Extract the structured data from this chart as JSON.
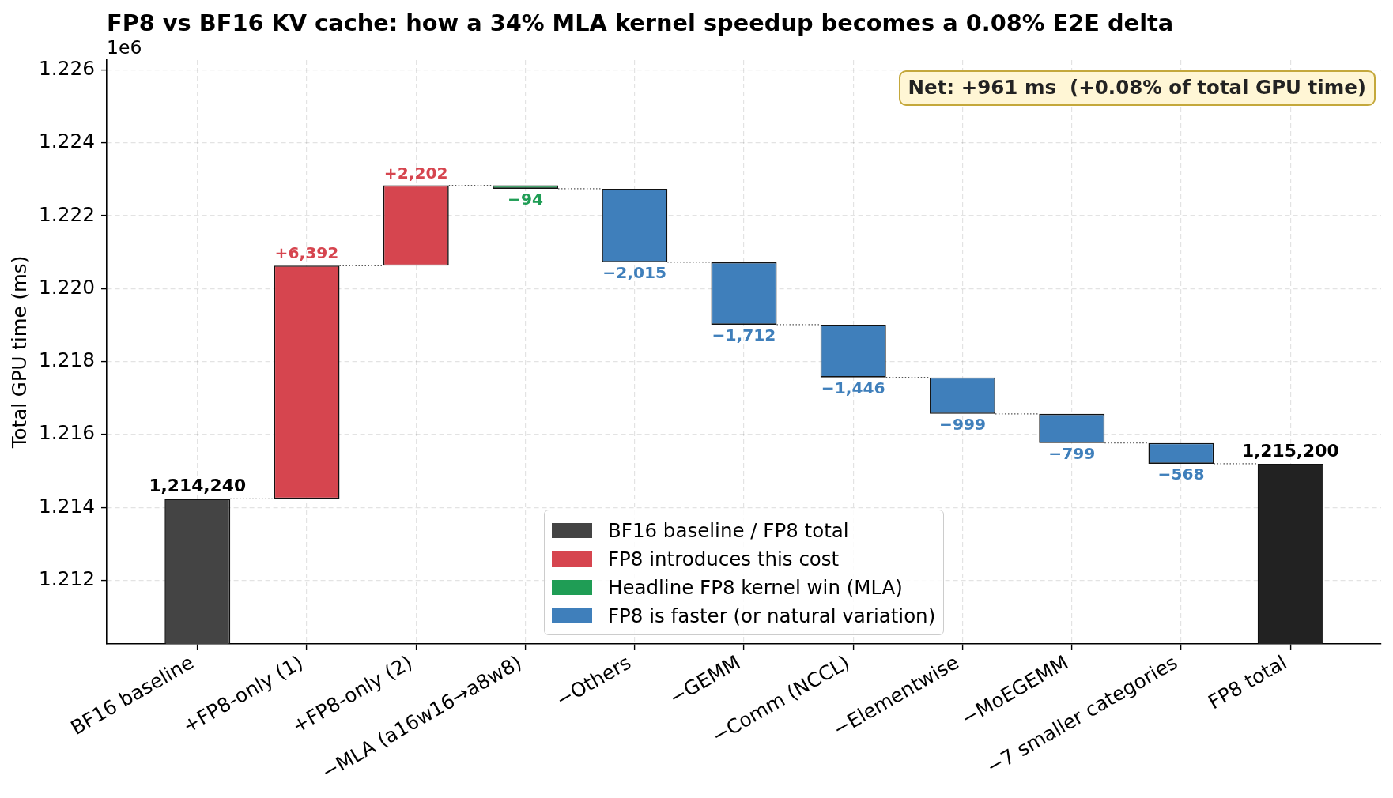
{
  "chart_data": {
    "type": "bar",
    "title": "FP8 vs BF16 KV cache: how a 34% MLA kernel speedup becomes a 0.08% E2E delta",
    "ylabel": "Total GPU time (ms)",
    "annotations": [
      "1e6",
      "Net: +961 ms  (+0.08% of total GPU time)",
      {
        "text": "1,214,240",
        "x": "BF16 baseline",
        "y": 1.21424
      },
      {
        "text": "+6,392",
        "x": "+FP8-only (1)",
        "y": 1.220632
      },
      {
        "text": "+2,202",
        "x": "+FP8-only (2)",
        "y": 1.222834
      },
      {
        "text": "−94",
        "x": "−MLA (a16w16→a8w8)",
        "y": 1.22274
      },
      {
        "text": "−2,015",
        "x": "−Others",
        "y": 1.220725
      },
      {
        "text": "−1,712",
        "x": "−GEMM",
        "y": 1.219013
      },
      {
        "text": "−1,446",
        "x": "−Comm (NCCL)",
        "y": 1.217567
      },
      {
        "text": "−999",
        "x": "−Elementwise",
        "y": 1.216568
      },
      {
        "text": "−799",
        "x": "−MoEGEMM",
        "y": 1.215769
      },
      {
        "text": "−568",
        "x": "−7 smaller categories",
        "y": 1.215201
      },
      {
        "text": "1,215,200",
        "x": "FP8 total",
        "y": 1.2152
      }
    ],
    "categories": [
      "BF16 baseline",
      "+FP8-only (1)",
      "+FP8-only (2)",
      "−MLA (a16w16→a8w8)",
      "−Others",
      "−GEMM",
      "−Comm (NCCL)",
      "−Elementwise",
      "−MoEGEMM",
      "−7 smaller categories",
      "FP8 total"
    ],
    "series": [
      {
        "name": "BF16 baseline / FP8 total",
        "color": "#444444",
        "colors": [
          "#444444",
          null,
          null,
          null,
          null,
          null,
          null,
          null,
          null,
          null,
          "#222222"
        ],
        "values": [
          1.21424,
          null,
          null,
          null,
          null,
          null,
          null,
          null,
          null,
          null,
          1.2152
        ]
      },
      {
        "name": "FP8 introduces this cost",
        "color": "#d6454f",
        "base": [
          null,
          1.21424,
          1.220632,
          null,
          null,
          null,
          null,
          null,
          null,
          null,
          null
        ],
        "values": [
          null,
          0.006392,
          0.002202,
          null,
          null,
          null,
          null,
          null,
          null,
          null,
          null
        ]
      },
      {
        "name": "Headline FP8 kernel win (MLA)",
        "color": "#1f9d55",
        "base": [
          null,
          null,
          null,
          1.222834,
          null,
          null,
          null,
          null,
          null,
          null,
          null
        ],
        "values": [
          null,
          null,
          null,
          -9.4e-05,
          null,
          null,
          null,
          null,
          null,
          null,
          null
        ]
      },
      {
        "name": "FP8 is faster (or natural variation)",
        "color": "#3f7fbb",
        "base": [
          null,
          null,
          null,
          null,
          1.22274,
          1.220725,
          1.219013,
          1.217567,
          1.216568,
          1.215769,
          null
        ],
        "values": [
          null,
          null,
          null,
          null,
          -0.002015,
          -0.001712,
          -0.001446,
          -0.000999,
          -0.000799,
          -0.000568,
          null
        ]
      }
    ],
    "ylim": [
      1.21026,
      1.22627
    ],
    "yticks": [
      1.212,
      1.214,
      1.216,
      1.218,
      {
        "value": 1.22,
        "label": "1.220"
      },
      1.222,
      1.224,
      1.226
    ],
    "grid": true,
    "legend": "bottom"
  }
}
